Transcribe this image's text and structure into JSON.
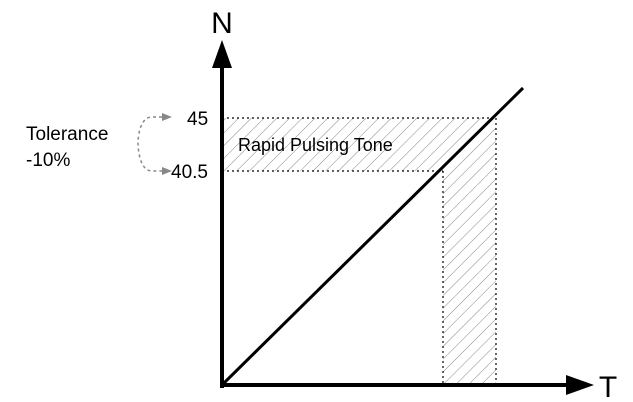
{
  "axes": {
    "y_label": "N",
    "x_label": "T"
  },
  "ticks": {
    "upper": "45",
    "lower": "40.5"
  },
  "band_label": "Rapid Pulsing Tone",
  "tolerance": {
    "line1": "Tolerance",
    "line2": "-10%"
  },
  "colors": {
    "line": "#000000",
    "dotted": "#000000",
    "hatch": "#888888",
    "arrow_gray": "#888888"
  }
}
